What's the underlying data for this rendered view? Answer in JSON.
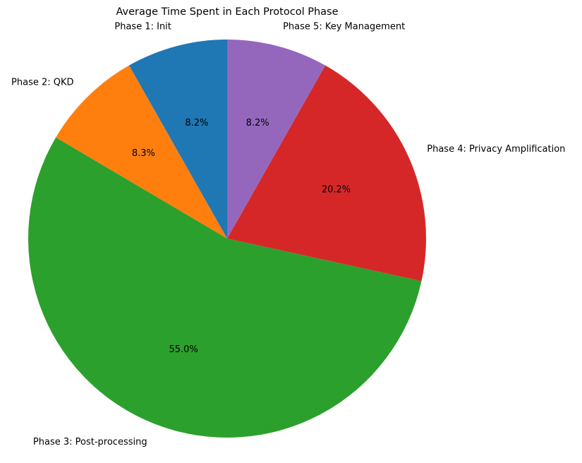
{
  "chart_data": {
    "type": "pie",
    "title": "Average Time Spent in Each Protocol Phase",
    "start_angle_deg": 90,
    "direction": "counterclockwise",
    "slices": [
      {
        "label": "Phase 1: Init",
        "value": 8.2,
        "pct_label": "8.2%",
        "color": "#1f77b4"
      },
      {
        "label": "Phase 2: QKD",
        "value": 8.3,
        "pct_label": "8.3%",
        "color": "#ff7f0e"
      },
      {
        "label": "Phase 3: Post-processing",
        "value": 55.0,
        "pct_label": "55.0%",
        "color": "#2ca02c"
      },
      {
        "label": "Phase 4: Privacy Amplification",
        "value": 20.2,
        "pct_label": "20.2%",
        "color": "#d62728"
      },
      {
        "label": "Phase 5: Key Management",
        "value": 8.2,
        "pct_label": "8.2%",
        "color": "#9467bd"
      }
    ]
  }
}
